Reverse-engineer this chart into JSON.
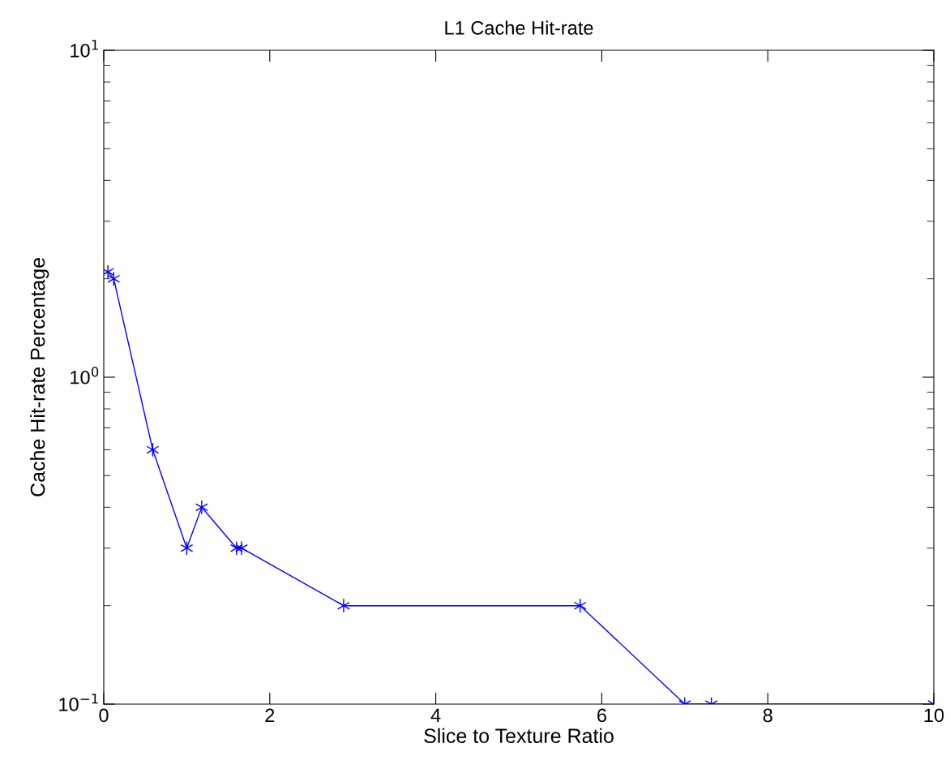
{
  "chart_data": {
    "type": "line",
    "title": "L1 Cache Hit-rate",
    "xlabel": "Slice to Texture Ratio",
    "ylabel": "Cache Hit-rate Percentage",
    "series": [
      {
        "color": "#0000ff",
        "x": [
          0.05,
          0.12,
          0.59,
          1.0,
          1.18,
          1.6,
          1.66,
          2.89,
          5.74,
          7.0,
          7.32,
          10
        ],
        "values": [
          2.1,
          2.0,
          0.6,
          0.3,
          0.4,
          0.3,
          0.3,
          0.2,
          0.2,
          0.1,
          0.1,
          0.1
        ]
      }
    ],
    "log": "y",
    "xlim": [
      0,
      10
    ],
    "xticks": [
      0,
      2,
      4,
      6,
      8,
      10
    ],
    "ylim": [
      0.1,
      10
    ],
    "yticks": [
      {
        "value": 0.1,
        "label": "10$^{−1}$"
      },
      {
        "value": 1,
        "label": "10$^{0}$"
      },
      {
        "value": 10,
        "label": "10$^{1}$"
      }
    ],
    "grid": false,
    "marker": "cross",
    "line_style": "solid"
  }
}
